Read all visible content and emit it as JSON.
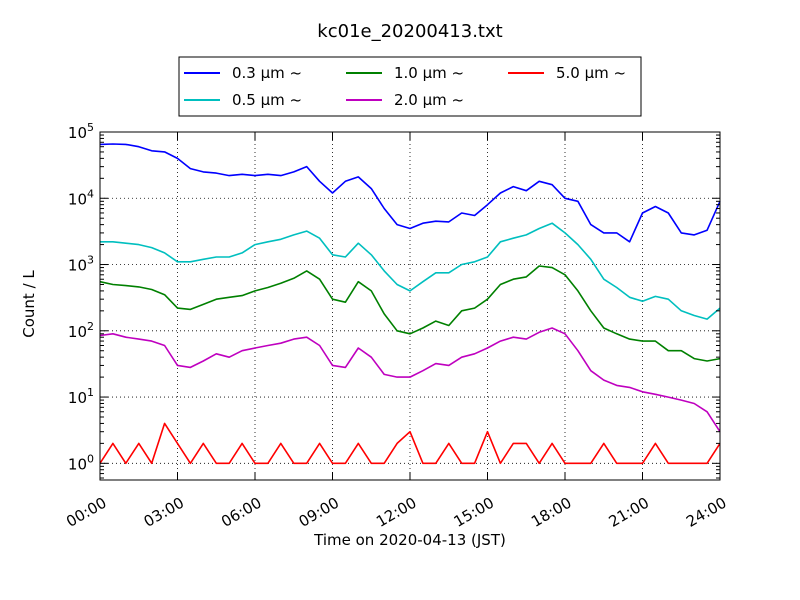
{
  "chart_data": {
    "type": "line",
    "title": "kc01e_20200413.txt",
    "xlabel": "Time on 2020-04-13 (JST)",
    "ylabel": "Count / L",
    "yscale": "log",
    "ylim": [
      0.56,
      100000
    ],
    "xlim": [
      0,
      24
    ],
    "grid": true,
    "legend_position": "top",
    "x_ticks": [
      {
        "value": 0,
        "label": "00:00"
      },
      {
        "value": 3,
        "label": "03:00"
      },
      {
        "value": 6,
        "label": "06:00"
      },
      {
        "value": 9,
        "label": "09:00"
      },
      {
        "value": 12,
        "label": "12:00"
      },
      {
        "value": 15,
        "label": "15:00"
      },
      {
        "value": 18,
        "label": "18:00"
      },
      {
        "value": 21,
        "label": "21:00"
      },
      {
        "value": 24,
        "label": "24:00"
      }
    ],
    "y_ticks": [
      {
        "value": 1,
        "base": "10",
        "exp": "0"
      },
      {
        "value": 10,
        "base": "10",
        "exp": "1"
      },
      {
        "value": 100,
        "base": "10",
        "exp": "2"
      },
      {
        "value": 1000,
        "base": "10",
        "exp": "3"
      },
      {
        "value": 10000,
        "base": "10",
        "exp": "4"
      },
      {
        "value": 100000,
        "base": "10",
        "exp": "5"
      }
    ],
    "series": [
      {
        "name": "0.3 µm  ~",
        "color": "#0000ff",
        "x": [
          0,
          0.5,
          1,
          1.5,
          2,
          2.5,
          3,
          3.5,
          4,
          4.5,
          5,
          5.5,
          6,
          6.5,
          7,
          7.5,
          8,
          8.5,
          9,
          9.5,
          10,
          10.5,
          11,
          11.5,
          12,
          12.5,
          13,
          13.5,
          14,
          14.5,
          15,
          15.5,
          16,
          16.5,
          17,
          17.5,
          18,
          18.5,
          19,
          19.5,
          20,
          20.5,
          21,
          21.5,
          22,
          22.5,
          23,
          23.5,
          24
        ],
        "values": [
          65000,
          66000,
          65000,
          60000,
          52000,
          50000,
          40000,
          28000,
          25000,
          24000,
          22000,
          23000,
          22000,
          23000,
          22000,
          25000,
          30000,
          18000,
          12000,
          18000,
          21000,
          14000,
          7000,
          4000,
          3500,
          4200,
          4500,
          4400,
          6000,
          5500,
          8000,
          12000,
          15000,
          13000,
          18000,
          16000,
          10000,
          9000,
          4000,
          3000,
          3000,
          2200,
          6000,
          7500,
          6000,
          3000,
          2800,
          3300,
          9000
        ]
      },
      {
        "name": "0.5 µm  ~",
        "color": "#00bfbf",
        "x": [
          0,
          0.5,
          1,
          1.5,
          2,
          2.5,
          3,
          3.5,
          4,
          4.5,
          5,
          5.5,
          6,
          6.5,
          7,
          7.5,
          8,
          8.5,
          9,
          9.5,
          10,
          10.5,
          11,
          11.5,
          12,
          12.5,
          13,
          13.5,
          14,
          14.5,
          15,
          15.5,
          16,
          16.5,
          17,
          17.5,
          18,
          18.5,
          19,
          19.5,
          20,
          20.5,
          21,
          21.5,
          22,
          22.5,
          23,
          23.5,
          24
        ],
        "values": [
          2200,
          2200,
          2100,
          2000,
          1800,
          1500,
          1100,
          1100,
          1200,
          1300,
          1300,
          1500,
          2000,
          2200,
          2400,
          2800,
          3200,
          2500,
          1400,
          1300,
          2100,
          1400,
          800,
          500,
          400,
          550,
          750,
          750,
          1000,
          1100,
          1300,
          2200,
          2500,
          2800,
          3500,
          4200,
          3000,
          2000,
          1200,
          600,
          450,
          320,
          280,
          330,
          300,
          200,
          170,
          150,
          220
        ]
      },
      {
        "name": "1.0 µm  ~",
        "color": "#008000",
        "x": [
          0,
          0.5,
          1,
          1.5,
          2,
          2.5,
          3,
          3.5,
          4,
          4.5,
          5,
          5.5,
          6,
          6.5,
          7,
          7.5,
          8,
          8.5,
          9,
          9.5,
          10,
          10.5,
          11,
          11.5,
          12,
          12.5,
          13,
          13.5,
          14,
          14.5,
          15,
          15.5,
          16,
          16.5,
          17,
          17.5,
          18,
          18.5,
          19,
          19.5,
          20,
          20.5,
          21,
          21.5,
          22,
          22.5,
          23,
          23.5,
          24
        ],
        "values": [
          550,
          500,
          480,
          460,
          420,
          350,
          220,
          210,
          250,
          300,
          320,
          340,
          400,
          450,
          520,
          620,
          800,
          600,
          300,
          270,
          550,
          400,
          180,
          100,
          90,
          110,
          140,
          120,
          200,
          220,
          300,
          500,
          600,
          650,
          950,
          900,
          700,
          400,
          200,
          110,
          90,
          75,
          70,
          70,
          50,
          50,
          38,
          35,
          38
        ]
      },
      {
        "name": "2.0 µm  ~",
        "color": "#bf00bf",
        "x": [
          0,
          0.5,
          1,
          1.5,
          2,
          2.5,
          3,
          3.5,
          4,
          4.5,
          5,
          5.5,
          6,
          6.5,
          7,
          7.5,
          8,
          8.5,
          9,
          9.5,
          10,
          10.5,
          11,
          11.5,
          12,
          12.5,
          13,
          13.5,
          14,
          14.5,
          15,
          15.5,
          16,
          16.5,
          17,
          17.5,
          18,
          18.5,
          19,
          19.5,
          20,
          20.5,
          21,
          21.5,
          22,
          22.5,
          23,
          23.5,
          24
        ],
        "values": [
          85,
          90,
          80,
          75,
          70,
          60,
          30,
          28,
          35,
          45,
          40,
          50,
          55,
          60,
          65,
          75,
          80,
          60,
          30,
          28,
          55,
          40,
          22,
          20,
          20,
          25,
          32,
          30,
          40,
          45,
          55,
          70,
          80,
          75,
          95,
          110,
          90,
          50,
          25,
          18,
          15,
          14,
          12,
          11,
          10,
          9,
          8,
          6,
          3
        ]
      },
      {
        "name": "5.0 µm  ~",
        "color": "#ff0000",
        "x": [
          0,
          0.5,
          1,
          1.5,
          2,
          2.5,
          3,
          3.5,
          4,
          4.5,
          5,
          5.5,
          6,
          6.5,
          7,
          7.5,
          8,
          8.5,
          9,
          9.5,
          10,
          10.5,
          11,
          11.5,
          12,
          12.5,
          13,
          13.5,
          14,
          14.5,
          15,
          15.5,
          16,
          16.5,
          17,
          17.5,
          18,
          18.5,
          19,
          19.5,
          20,
          20.5,
          21,
          21.5,
          22,
          22.5,
          23,
          23.5,
          24
        ],
        "values": [
          1,
          2,
          1,
          2,
          1,
          4,
          2,
          1,
          2,
          1,
          1,
          2,
          1,
          1,
          2,
          1,
          1,
          2,
          1,
          1,
          2,
          1,
          1,
          2,
          3,
          1,
          1,
          2,
          1,
          1,
          3,
          1,
          2,
          2,
          1,
          2,
          1,
          1,
          1,
          2,
          1,
          1,
          1,
          2,
          1,
          1,
          1,
          1,
          2
        ]
      }
    ]
  }
}
